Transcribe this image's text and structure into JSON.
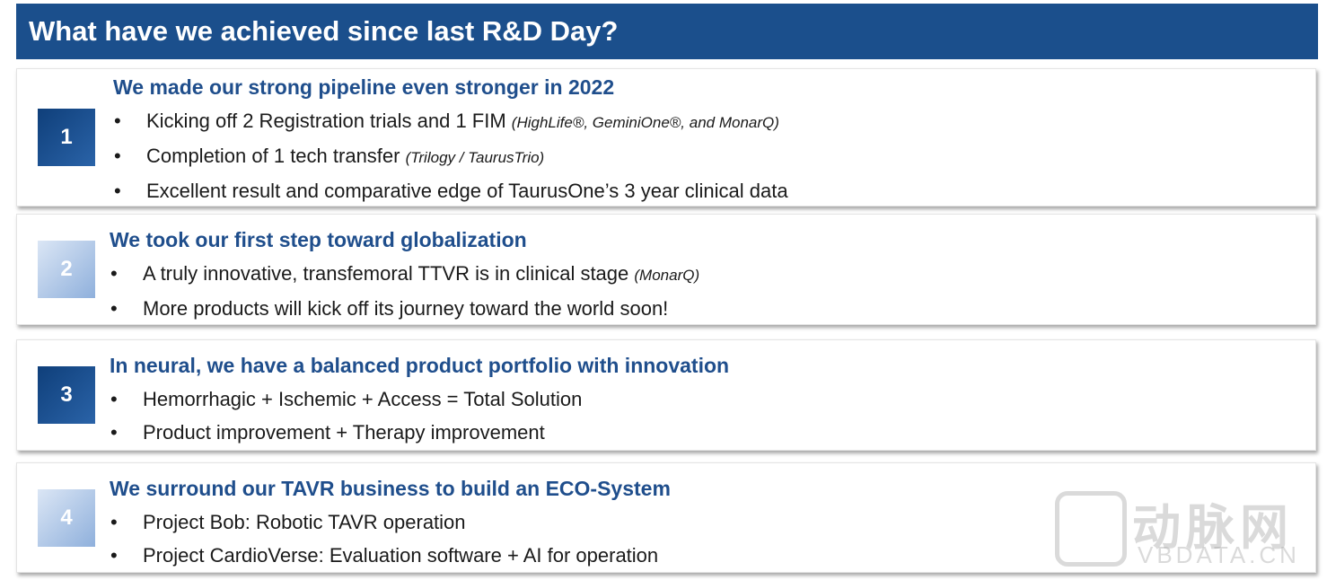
{
  "header": {
    "title": "What have we achieved since last R&D Day?"
  },
  "sections": [
    {
      "number": "1",
      "heading": "We made our strong pipeline even stronger in 2022",
      "bullets": [
        {
          "text": "Kicking off 2 Registration trials and 1 FIM",
          "note": "(HighLife®, GeminiOne®, and MonarQ)"
        },
        {
          "text": "Completion of 1 tech transfer",
          "note": "(Trilogy / TaurusTrio)"
        },
        {
          "text": "Excellent result and comparative edge of TaurusOne’s 3 year clinical data"
        }
      ]
    },
    {
      "number": "2",
      "heading": "We took our first step toward globalization",
      "bullets": [
        {
          "text": "A truly innovative, transfemoral TTVR is in clinical stage",
          "note": "(MonarQ)"
        },
        {
          "text": "More products will kick off its journey toward the world soon!"
        }
      ]
    },
    {
      "number": "3",
      "heading": "In neural, we have a balanced product portfolio with innovation",
      "bullets": [
        {
          "text": "Hemorrhagic + Ischemic + Access = Total Solution"
        },
        {
          "text": "Product improvement + Therapy improvement"
        }
      ]
    },
    {
      "number": "4",
      "heading": "We surround our TAVR business to build an ECO-System",
      "bullets": [
        {
          "text": "Project Bob: Robotic TAVR operation"
        },
        {
          "text": "Project CardioVerse: Evaluation software + AI for operation"
        }
      ]
    }
  ],
  "watermark": {
    "logo": "动脉网",
    "site": "VBDATA.CN"
  }
}
